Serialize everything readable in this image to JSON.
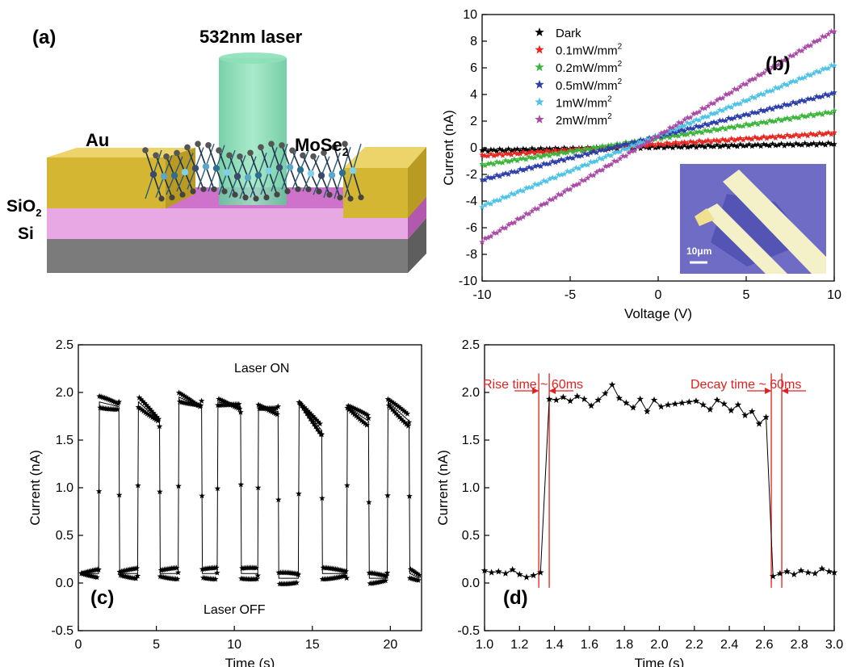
{
  "panel_a": {
    "label": "(a)",
    "laser_label": "532nm laser",
    "electrode_label": "Au",
    "material_label": "MoSe",
    "material_sub": "2",
    "oxide_label": "SiO",
    "oxide_sub": "2",
    "substrate_label": "Si",
    "colors": {
      "gold": "#d8b83a",
      "oxide": "#c766c2",
      "silicon": "#7c7c7c",
      "laser": "#72d4a6"
    }
  },
  "chart_data": [
    {
      "id": "b",
      "panel_label": "(b)",
      "type": "scatter",
      "xlabel": "Voltage (V)",
      "ylabel": "Current (nA)",
      "xlim": [
        -10,
        10
      ],
      "ylim": [
        -10,
        10
      ],
      "x_ticks": [
        -10,
        -5,
        0,
        5,
        10
      ],
      "y_ticks": [
        -10,
        -8,
        -6,
        -4,
        -2,
        0,
        2,
        4,
        6,
        8,
        10
      ],
      "legend_position": "top-left",
      "grid": false,
      "series": [
        {
          "name": "Dark",
          "sup": "",
          "color": "#000000",
          "x": [
            -10,
            10
          ],
          "y": [
            -0.2,
            0.3
          ]
        },
        {
          "name": "0.1mW/mm",
          "sup": "2",
          "color": "#e8251f",
          "x": [
            -10,
            10
          ],
          "y": [
            -0.6,
            1.1
          ]
        },
        {
          "name": "0.2mW/mm",
          "sup": "2",
          "color": "#3cb53a",
          "x": [
            -10,
            10
          ],
          "y": [
            -1.3,
            2.7
          ]
        },
        {
          "name": "0.5mW/mm",
          "sup": "2",
          "color": "#2c3ea8",
          "x": [
            -10,
            10
          ],
          "y": [
            -2.4,
            4.1
          ]
        },
        {
          "name": "1mW/mm",
          "sup": "2",
          "color": "#4ec3e6",
          "x": [
            -10,
            10
          ],
          "y": [
            -4.4,
            6.2
          ]
        },
        {
          "name": "2mW/mm",
          "sup": "2",
          "color": "#a94aa6",
          "x": [
            -10,
            10
          ],
          "y": [
            -7.0,
            8.8
          ]
        }
      ],
      "inset": {
        "scale_label": "10μm"
      }
    },
    {
      "id": "c",
      "panel_label": "(c)",
      "type": "line",
      "xlabel": "Time (s)",
      "ylabel": "Current (nA)",
      "xlim": [
        0,
        22
      ],
      "ylim": [
        -0.5,
        2.5
      ],
      "x_ticks": [
        0,
        5,
        10,
        15,
        20
      ],
      "y_ticks": [
        -0.5,
        0.0,
        0.5,
        1.0,
        1.5,
        2.0,
        2.5
      ],
      "annotations": [
        "Laser ON",
        "Laser OFF"
      ],
      "grid": false,
      "series": [
        {
          "color": "#000000",
          "x": [
            0.2,
            1.3,
            1.35,
            2.6,
            2.65,
            3.8,
            3.85,
            5.2,
            5.25,
            6.4,
            6.45,
            7.9,
            7.95,
            8.9,
            8.95,
            10.4,
            10.45,
            11.5,
            11.55,
            12.8,
            12.85,
            14.1,
            14.15,
            15.6,
            15.65,
            17.2,
            17.25,
            18.6,
            18.65,
            19.8,
            19.85,
            21.2,
            21.25,
            21.9
          ],
          "y": [
            0.1,
            0.1,
            1.9,
            1.85,
            0.1,
            0.1,
            1.9,
            1.7,
            0.1,
            0.1,
            1.95,
            1.85,
            0.1,
            0.1,
            1.9,
            1.85,
            0.1,
            0.1,
            1.85,
            1.8,
            0.05,
            0.05,
            1.9,
            1.6,
            0.1,
            0.1,
            1.85,
            1.7,
            0.05,
            0.05,
            1.9,
            1.7,
            0.1,
            0.05
          ]
        }
      ]
    },
    {
      "id": "d",
      "panel_label": "(d)",
      "type": "line",
      "xlabel": "Time (s)",
      "ylabel": "Current (nA)",
      "xlim": [
        1.0,
        3.0
      ],
      "ylim": [
        -0.5,
        2.5
      ],
      "x_ticks": [
        1.0,
        1.2,
        1.4,
        1.6,
        1.8,
        2.0,
        2.2,
        2.4,
        2.6,
        2.8,
        3.0
      ],
      "y_ticks": [
        -0.5,
        0.0,
        0.5,
        1.0,
        1.5,
        2.0,
        2.5
      ],
      "grid": false,
      "annotations": [
        "Rise time ~ 60ms",
        "Decay time ~ 60ms"
      ],
      "markers_x": [
        1.31,
        1.37,
        2.64,
        2.7
      ],
      "annotation_color": "#e02020",
      "series": [
        {
          "color": "#000000",
          "x": [
            1.0,
            1.04,
            1.08,
            1.12,
            1.16,
            1.2,
            1.24,
            1.28,
            1.32,
            1.37,
            1.41,
            1.45,
            1.49,
            1.53,
            1.57,
            1.61,
            1.65,
            1.69,
            1.73,
            1.77,
            1.81,
            1.85,
            1.89,
            1.93,
            1.97,
            2.01,
            2.05,
            2.09,
            2.13,
            2.17,
            2.21,
            2.25,
            2.29,
            2.33,
            2.37,
            2.41,
            2.45,
            2.49,
            2.53,
            2.57,
            2.61,
            2.65,
            2.69,
            2.73,
            2.77,
            2.81,
            2.85,
            2.89,
            2.93,
            2.97,
            3.0
          ],
          "y": [
            0.13,
            0.11,
            0.12,
            0.1,
            0.14,
            0.09,
            0.06,
            0.08,
            0.11,
            1.93,
            1.92,
            1.95,
            1.91,
            1.96,
            1.93,
            1.86,
            1.92,
            1.99,
            2.08,
            1.94,
            1.89,
            1.84,
            1.93,
            1.8,
            1.92,
            1.85,
            1.87,
            1.88,
            1.89,
            1.9,
            1.91,
            1.87,
            1.82,
            1.92,
            1.88,
            1.81,
            1.87,
            1.76,
            1.8,
            1.67,
            1.74,
            0.07,
            0.1,
            0.12,
            0.09,
            0.13,
            0.11,
            0.1,
            0.15,
            0.12,
            0.11
          ]
        }
      ]
    }
  ]
}
